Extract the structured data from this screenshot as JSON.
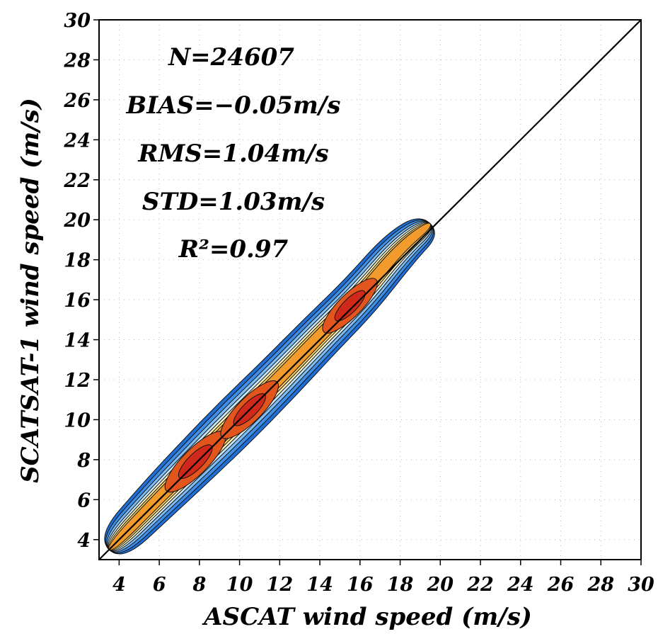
{
  "chart_data": {
    "type": "heatmap",
    "subtype": "density-contour-scatter",
    "xlabel": "ASCAT wind speed (m/s)",
    "ylabel": "SCATSAT-1 wind speed (m/s)",
    "xlim": [
      3,
      30
    ],
    "ylim": [
      3,
      30
    ],
    "x_ticks": [
      4,
      6,
      8,
      10,
      12,
      14,
      16,
      18,
      20,
      22,
      24,
      26,
      28,
      30
    ],
    "y_ticks": [
      4,
      6,
      8,
      10,
      12,
      14,
      16,
      18,
      20,
      22,
      24,
      26,
      28,
      30
    ],
    "grid": true,
    "reference_line": "y = x",
    "annotations": {
      "n": "N=24607",
      "bias": "BIAS=−0.05m/s",
      "rms": "RMS=1.04m/s",
      "std": "STD=1.03m/s",
      "r2": "R²=0.97"
    },
    "colors": {
      "low": "#1f6fd6",
      "mid": "#f7d36a",
      "high": "#d0281a"
    },
    "density_ridge": [
      {
        "x": 3.5,
        "y": 3.5,
        "half_width": 0.9
      },
      {
        "x": 6,
        "y": 6.1,
        "half_width": 1.1
      },
      {
        "x": 8,
        "y": 8.1,
        "half_width": 1.2
      },
      {
        "x": 10,
        "y": 10.1,
        "half_width": 1.25
      },
      {
        "x": 12,
        "y": 12.1,
        "half_width": 1.2
      },
      {
        "x": 14,
        "y": 14.2,
        "half_width": 1.15
      },
      {
        "x": 16,
        "y": 16.2,
        "half_width": 1.1
      },
      {
        "x": 18,
        "y": 18.6,
        "half_width": 1.0
      },
      {
        "x": 19.5,
        "y": 19.8,
        "half_width": 0.7
      }
    ],
    "density_peaks": [
      {
        "x": 7.8,
        "y": 7.9,
        "level": 1.0
      },
      {
        "x": 10.5,
        "y": 10.5,
        "level": 0.95
      },
      {
        "x": 15.5,
        "y": 15.7,
        "level": 0.9
      }
    ]
  }
}
